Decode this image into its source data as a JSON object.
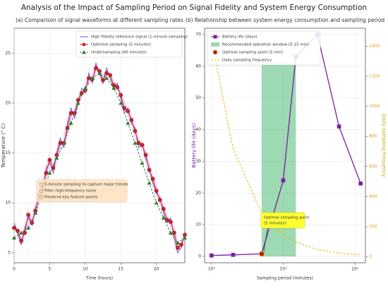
{
  "title": "Analysis of the Impact of Sampling Period on Signal Fidelity and System Energy Consumption",
  "chart_data": [
    {
      "type": "line",
      "title": "(a) Comparison of signal waveforms at different sampling rates",
      "xlabel": "Time (hours)",
      "ylabel": "Temperature (° C)",
      "xlim": [
        0,
        24
      ],
      "ylim": [
        4,
        27.5
      ],
      "xticks": [
        0,
        5,
        10,
        15,
        20
      ],
      "yticks": [
        5,
        10,
        15,
        20,
        25
      ],
      "grid": true,
      "legend": "upper right",
      "series": [
        {
          "name": "High fidelity reference signal (1-minute sampling)",
          "color": "#6a5acd",
          "marker": "none",
          "x": [
            0,
            0.5,
            1,
            1.5,
            2,
            2.5,
            3,
            3.5,
            4,
            4.5,
            5,
            5.5,
            6,
            6.5,
            7,
            7.5,
            8,
            8.5,
            9,
            9.5,
            10,
            10.5,
            11,
            11.5,
            12,
            12.5,
            13,
            13.5,
            14,
            14.5,
            15,
            15.5,
            16,
            16.5,
            17,
            17.5,
            18,
            18.5,
            19,
            19.5,
            20,
            20.5,
            21,
            21.5,
            22,
            22.5,
            23,
            23.5,
            24
          ],
          "values": [
            8,
            7,
            5.8,
            7.5,
            8.5,
            7.8,
            9.5,
            10.5,
            11,
            13.5,
            14,
            13,
            15,
            16.5,
            15.5,
            18,
            19.5,
            18.5,
            20,
            21.5,
            21,
            23,
            22,
            24,
            23,
            22,
            23.5,
            22.5,
            21.5,
            22,
            20.5,
            19,
            19.5,
            18,
            17.5,
            15.5,
            16,
            14.5,
            13.5,
            12,
            11,
            10.5,
            9,
            8,
            8.5,
            6.5,
            5,
            5.5,
            7
          ]
        },
        {
          "name": "Optimize sampling (5 minutes)",
          "color": "#c62828",
          "marker": "circle",
          "x": [
            0,
            0.5,
            1,
            1.5,
            2,
            2.5,
            3,
            3.5,
            4,
            4.5,
            5,
            5.5,
            6,
            6.5,
            7,
            7.5,
            8,
            8.5,
            9,
            9.5,
            10,
            10.5,
            11,
            11.5,
            12,
            12.5,
            13,
            13.5,
            14,
            14.5,
            15,
            15.5,
            16,
            16.5,
            17,
            17.5,
            18,
            18.5,
            19,
            19.5,
            20,
            20.5,
            21,
            21.5,
            22,
            22.5,
            23,
            23.5,
            24
          ],
          "values": [
            7.5,
            7.2,
            6.2,
            7,
            8.8,
            8,
            9.2,
            10.8,
            11.5,
            13,
            14.3,
            13.5,
            14.8,
            16,
            16,
            17.5,
            19,
            19,
            20.3,
            21,
            21.3,
            22.5,
            22.4,
            23.5,
            23.2,
            22.3,
            23,
            22.8,
            21.8,
            21.6,
            20.8,
            19.5,
            19.2,
            18.3,
            17.2,
            16,
            15.8,
            14.8,
            13.3,
            12.4,
            11.2,
            10.3,
            9.4,
            8.3,
            8.1,
            7,
            5.5,
            5.8,
            6.8
          ]
        },
        {
          "name": "Undersampling (60 minutes)",
          "color": "#2e7d32",
          "marker": "triangle",
          "dashed": true,
          "x": [
            0,
            1,
            2,
            3,
            4,
            5,
            6,
            7,
            8,
            9,
            10,
            11,
            12,
            13,
            14,
            15,
            16,
            17,
            18,
            19,
            20,
            21,
            22,
            23,
            24
          ],
          "values": [
            6.5,
            7,
            7.5,
            9,
            11,
            13,
            14.5,
            16,
            18,
            20,
            21.5,
            22.5,
            23,
            22.5,
            21.5,
            20,
            18,
            16,
            14,
            12,
            10,
            8.5,
            7,
            6,
            6.5
          ]
        }
      ],
      "annotation": {
        "lines": [
          "□ 5-minute sampling to capture major trends",
          "□ Filter high-frequency noise",
          "□ Preserve key feature points"
        ]
      }
    },
    {
      "type": "line",
      "title": "(b) Relationship between system energy consumption and sampling period",
      "xlabel": "Sampling period (minutes)",
      "ylabel": "Battery life (days)",
      "y2label": "Daily sampling frequency",
      "xlog": true,
      "xlim": [
        0.8,
        140
      ],
      "ylim": [
        -2,
        72
      ],
      "y2lim": [
        -40,
        1520
      ],
      "xticks": [
        {
          "value": 1,
          "label": "10⁰"
        },
        {
          "value": 10,
          "label": "10¹"
        },
        {
          "value": 100,
          "label": "10²"
        }
      ],
      "yticks": [
        0,
        10,
        20,
        30,
        40,
        50,
        60,
        70
      ],
      "y2ticks": [
        0,
        200,
        400,
        600,
        800,
        1000,
        1200,
        1400
      ],
      "grid": true,
      "legend": "upper left",
      "ylabel_color": "#7b1fa2",
      "y2label_color": "#d4a017",
      "window": {
        "name": "Recommended operation window (5-15 min)",
        "color": "#5cbf7f",
        "x": [
          5,
          15
        ],
        "height": 61
      },
      "series": [
        {
          "name": "Battery life (days)",
          "color": "#7b1fa2",
          "marker": "square",
          "x": [
            1,
            2,
            5,
            10,
            15,
            30,
            60,
            120
          ],
          "values": [
            0.3,
            0.5,
            0.8,
            24,
            63,
            70,
            41,
            23
          ]
        },
        {
          "name": "Daily sampling frequency",
          "color": "#f0b400",
          "marker": "none",
          "dashed": true,
          "axis": "y2",
          "x": [
            1,
            2,
            5,
            10,
            15,
            30,
            60,
            120
          ],
          "values": [
            1440,
            720,
            288,
            144,
            96,
            48,
            24,
            12
          ]
        }
      ],
      "optimal_point": {
        "name": "Optimal sampling point (5 min)",
        "color": "#b71c1c",
        "x": 5,
        "y": 0.8
      },
      "annotation": {
        "lines": [
          "Optimal sampling point",
          "(5 minutes)"
        ]
      }
    }
  ]
}
